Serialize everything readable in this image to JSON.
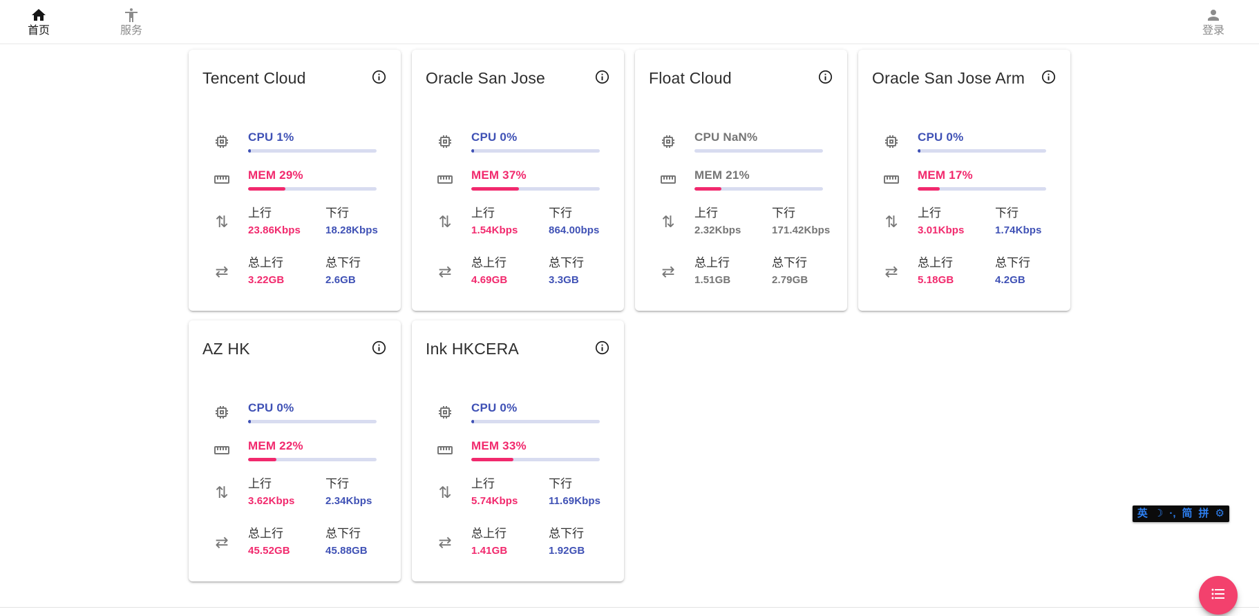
{
  "navbar": {
    "home": {
      "label": "首页"
    },
    "services": {
      "label": "服务"
    },
    "login": {
      "label": "登录"
    }
  },
  "labels": {
    "upload": "上行",
    "download": "下行",
    "total_upload": "总上行",
    "total_download": "总下行"
  },
  "colors": {
    "cpu_accent": "#3f51b5",
    "mem_accent": "#f1296d",
    "download_accent": "#3f51b5",
    "upload_accent": "#f1296d",
    "muted": "#757575",
    "bar_track": "#d8dcf0",
    "fab": "#f3416d",
    "ime_accent": "#2d7ff0"
  },
  "servers": [
    {
      "name": "Tencent Cloud",
      "cpu_text": "CPU 1%",
      "cpu_percent": 1,
      "mem_text": "MEM 29%",
      "mem_percent": 29,
      "upload": "23.86Kbps",
      "download": "18.28Kbps",
      "total_upload": "3.22GB",
      "total_download": "2.6GB",
      "muted": false
    },
    {
      "name": "Oracle San Jose",
      "cpu_text": "CPU 0%",
      "cpu_percent": 0,
      "mem_text": "MEM 37%",
      "mem_percent": 37,
      "upload": "1.54Kbps",
      "download": "864.00bps",
      "total_upload": "4.69GB",
      "total_download": "3.3GB",
      "muted": false
    },
    {
      "name": "Float Cloud",
      "cpu_text": "CPU NaN%",
      "cpu_percent": null,
      "mem_text": "MEM 21%",
      "mem_percent": 21,
      "upload": "2.32Kbps",
      "download": "171.42Kbps",
      "total_upload": "1.51GB",
      "total_download": "2.79GB",
      "muted": true
    },
    {
      "name": "Oracle San Jose Arm",
      "cpu_text": "CPU 0%",
      "cpu_percent": 0,
      "mem_text": "MEM 17%",
      "mem_percent": 17,
      "upload": "3.01Kbps",
      "download": "1.74Kbps",
      "total_upload": "5.18GB",
      "total_download": "4.2GB",
      "muted": false
    },
    {
      "name": "AZ HK",
      "cpu_text": "CPU 0%",
      "cpu_percent": 0,
      "mem_text": "MEM 22%",
      "mem_percent": 22,
      "upload": "3.62Kbps",
      "download": "2.34Kbps",
      "total_upload": "45.52GB",
      "total_download": "45.88GB",
      "muted": false
    },
    {
      "name": "Ink HKCERA",
      "cpu_text": "CPU 0%",
      "cpu_percent": 0,
      "mem_text": "MEM 33%",
      "mem_percent": 33,
      "upload": "5.74Kbps",
      "download": "11.69Kbps",
      "total_upload": "1.41GB",
      "total_download": "1.92GB",
      "muted": false
    }
  ],
  "ime_toolbar": {
    "items": [
      "英",
      "☽",
      "·,",
      "简",
      "拼",
      "⚙"
    ]
  }
}
